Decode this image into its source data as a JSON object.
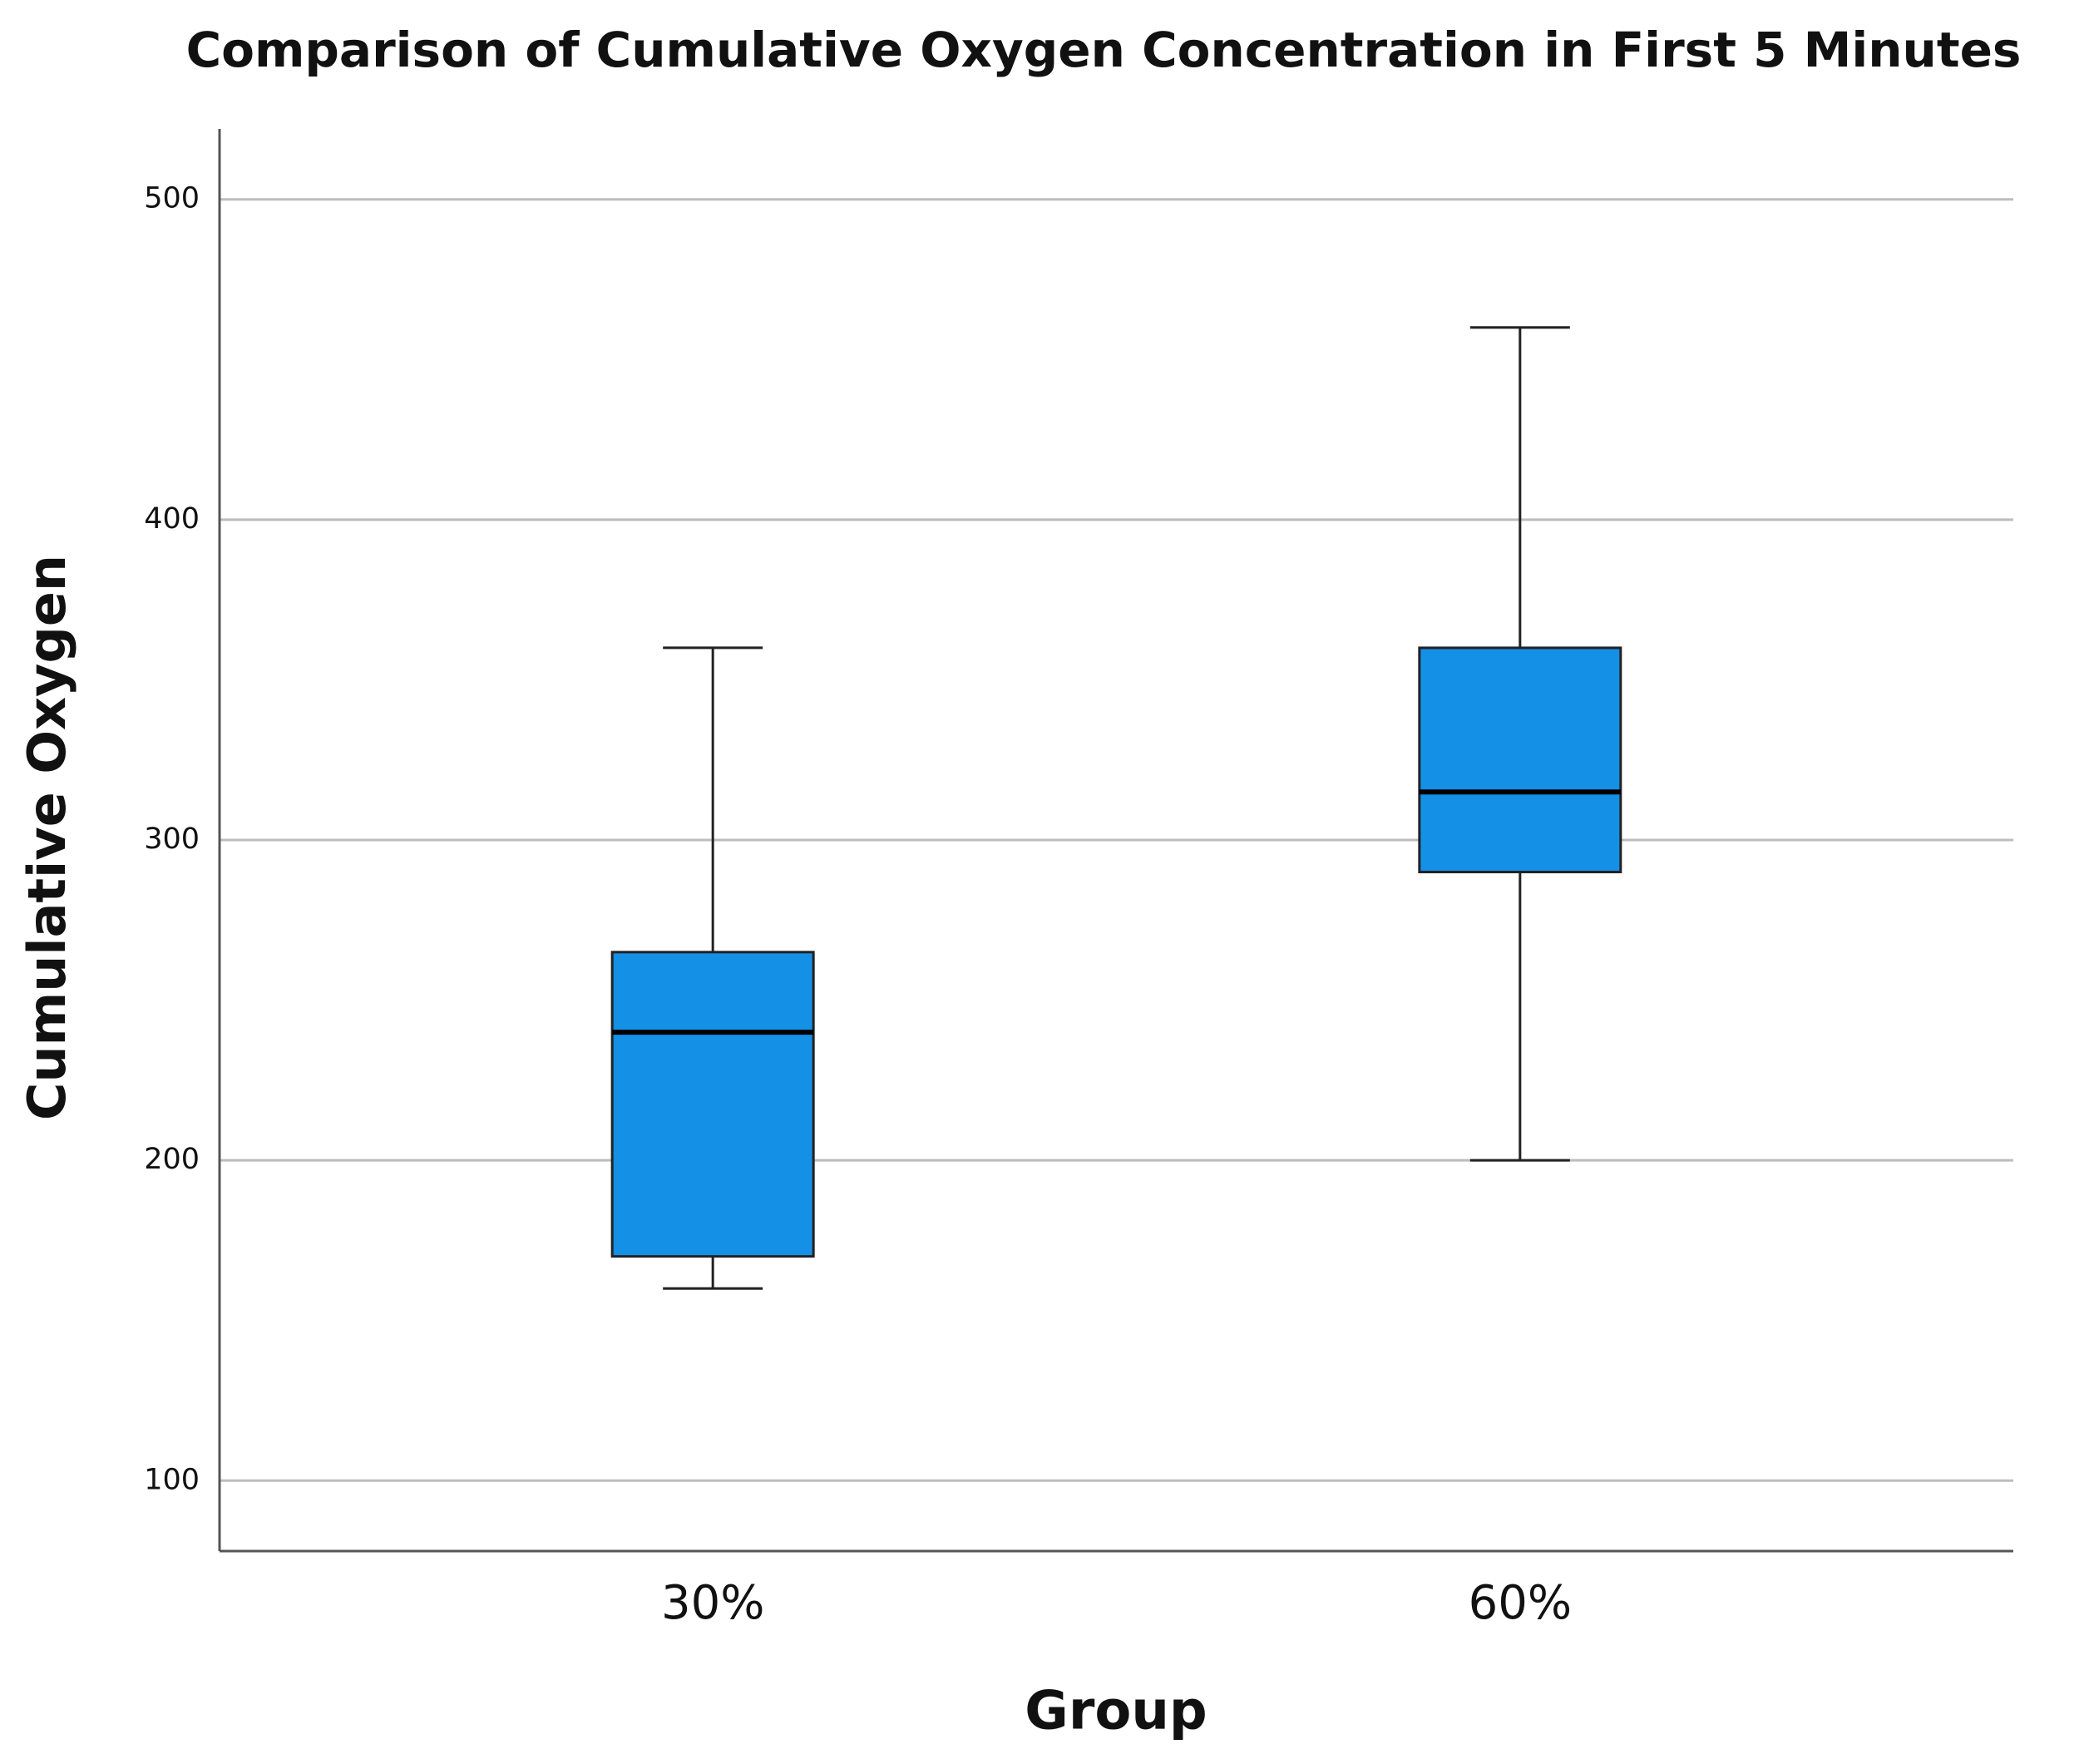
{
  "chart_data": {
    "type": "box",
    "title": "Comparison of Cumulative Oxygen Concentration in First 5 Minutes",
    "x_label": "Group",
    "y_label": "Cumulative Oxygen",
    "categories": [
      "30%",
      "60%"
    ],
    "boxes": [
      {
        "min": 160,
        "q1": 170,
        "median": 240,
        "q3": 265,
        "max": 360
      },
      {
        "min": 200,
        "q1": 290,
        "median": 315,
        "q3": 360,
        "max": 460
      }
    ],
    "color": "#1490e6",
    "ylim": [
      78,
      522
    ],
    "yticks": [
      100,
      200,
      300,
      400,
      500
    ],
    "grid": true
  }
}
